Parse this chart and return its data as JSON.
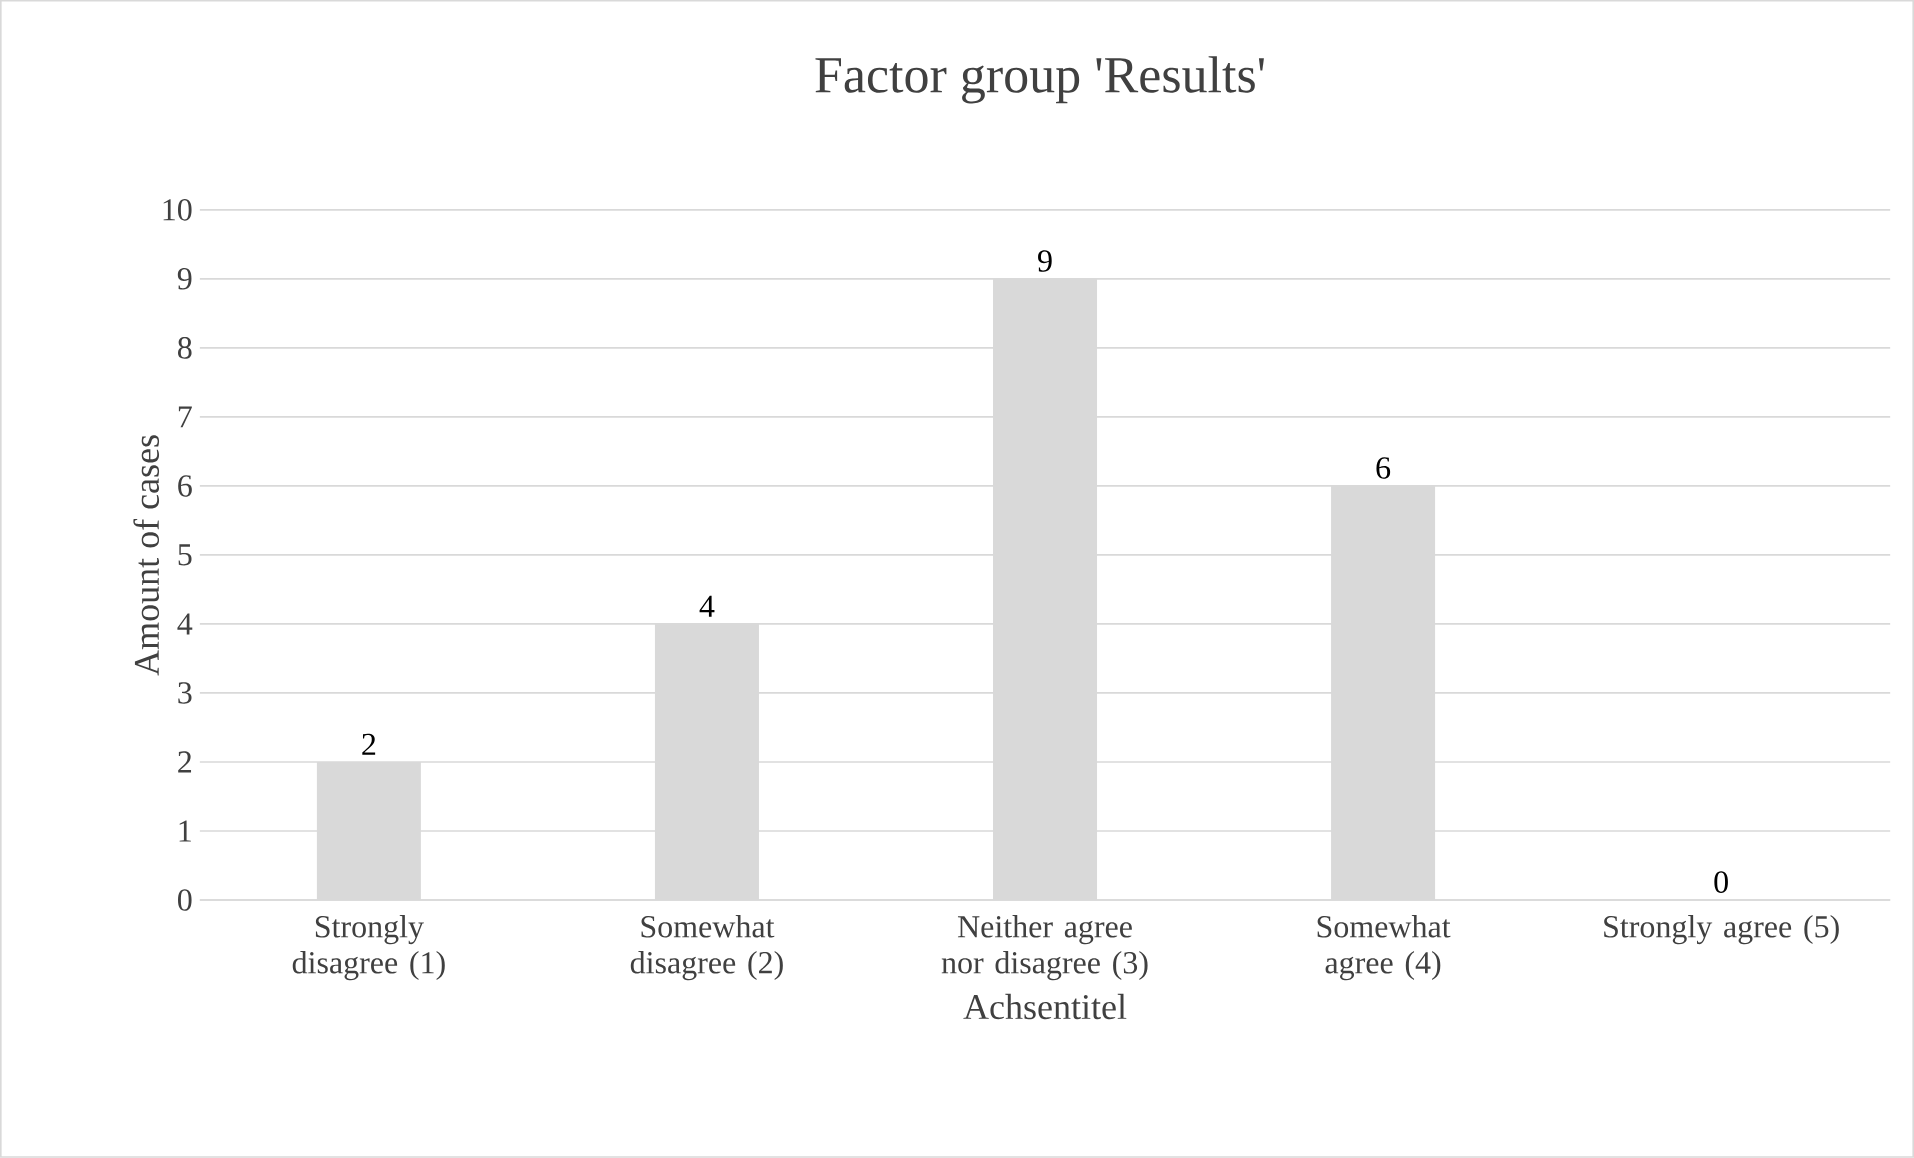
{
  "chart_data": {
    "type": "bar",
    "title": "Factor group 'Results'",
    "xlabel": "Achsentitel",
    "ylabel": "Amount of cases",
    "categories": [
      "Strongly disagree (1)",
      "Somewhat disagree (2)",
      "Neither agree nor disagree (3)",
      "Somewhat agree (4)",
      "Strongly agree (5)"
    ],
    "values": [
      2,
      4,
      9,
      6,
      0
    ],
    "color": "#d9d9d9",
    "ylim": [
      0,
      10
    ],
    "yticks": [
      0,
      1,
      2,
      3,
      4,
      5,
      6,
      7,
      8,
      9,
      10
    ],
    "grid": "y",
    "data_labels": true
  }
}
